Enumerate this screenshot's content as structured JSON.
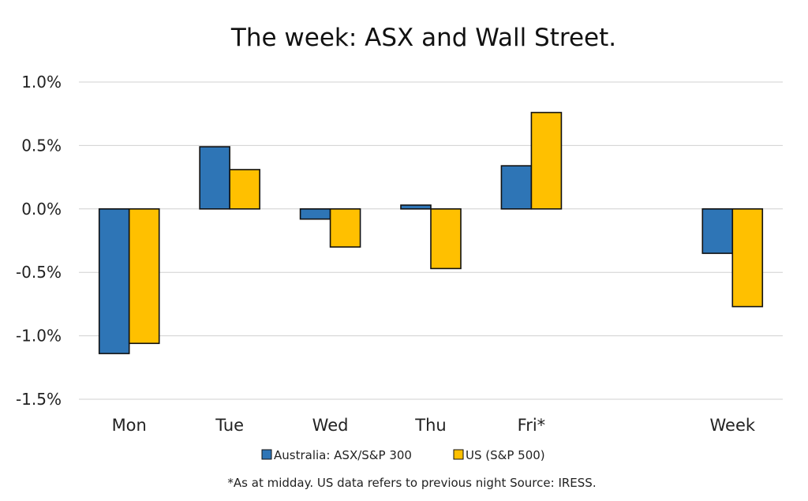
{
  "chart_data": {
    "type": "bar",
    "title": "The week:  ASX and Wall Street.",
    "categories": [
      "Mon",
      "Tue",
      "Wed",
      "Thu",
      "Fri*",
      "",
      "Week"
    ],
    "series": [
      {
        "name": "Australia: ASX/S&P 300",
        "color": "#2E75B6",
        "values": [
          -1.14,
          0.49,
          -0.08,
          0.03,
          0.34,
          null,
          -0.35
        ]
      },
      {
        "name": "US (S&P 500)",
        "color": "#FFC000",
        "values": [
          -1.06,
          0.31,
          -0.3,
          -0.47,
          0.76,
          null,
          -0.77
        ]
      }
    ],
    "ylim": [
      -1.5,
      1.0
    ],
    "yticks": [
      "1.0%",
      "0.5%",
      "0.0%",
      "-0.5%",
      "-1.0%",
      "-1.5%"
    ],
    "grid": true,
    "legend_position": "bottom",
    "footnote": "*As at midday. US data refers to previous night  Source:  IRESS."
  }
}
